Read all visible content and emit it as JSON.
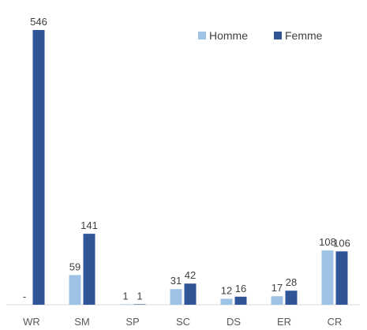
{
  "chart_data": {
    "type": "bar",
    "categories": [
      "WR",
      "SM",
      "SP",
      "SC",
      "DS",
      "ER",
      "CR"
    ],
    "series": [
      {
        "name": "Homme",
        "color": "#9DC3E6",
        "values": [
          0,
          59,
          1,
          31,
          12,
          17,
          108
        ],
        "labels": [
          "-",
          "59",
          "1",
          "31",
          "12",
          "17",
          "108"
        ]
      },
      {
        "name": "Femme",
        "color": "#2F5597",
        "values": [
          546,
          141,
          1,
          42,
          16,
          28,
          106
        ],
        "labels": [
          "546",
          "141",
          "1",
          "42",
          "16",
          "28",
          "106"
        ]
      }
    ],
    "ylim": [
      0,
      546
    ],
    "grid": false,
    "legend": "top-right"
  }
}
